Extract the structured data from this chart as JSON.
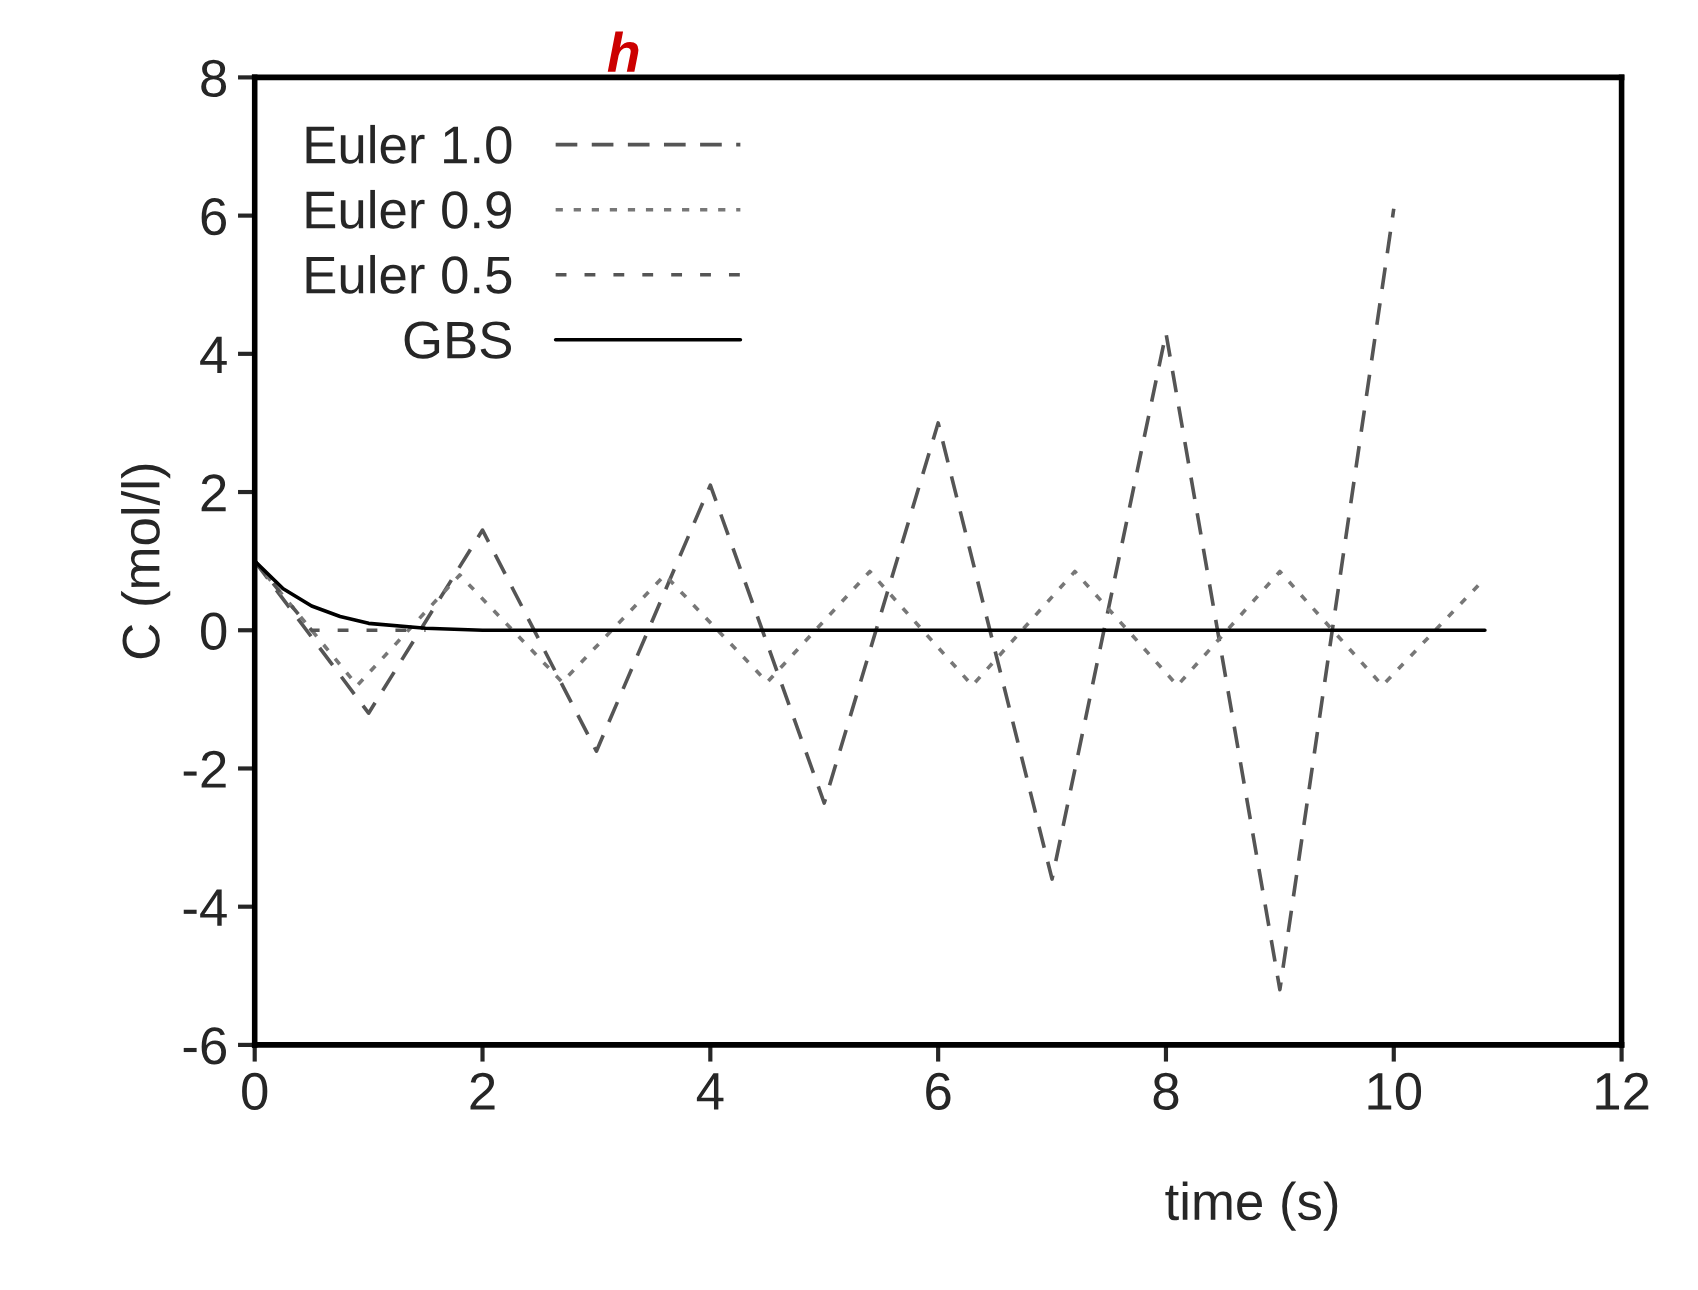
{
  "chart_data": {
    "type": "line",
    "title": "h",
    "xlabel": "time (s)",
    "ylabel": "C (mol/l)",
    "xlim": [
      0,
      12
    ],
    "xticks": [
      0,
      2,
      4,
      6,
      8,
      10,
      12
    ],
    "ylim": [
      -6,
      8
    ],
    "yticks": [
      -6,
      -4,
      -2,
      0,
      2,
      4,
      6,
      8
    ],
    "grid": false,
    "legend": "top left",
    "marker": "none",
    "series": [
      {
        "name": "Euler 1.0",
        "color": "#555555",
        "line_style": "dashed",
        "x": [
          0,
          1,
          2,
          3,
          4,
          5,
          6,
          7,
          8,
          9,
          10
        ],
        "values": [
          1,
          -1.2,
          1.45,
          -1.75,
          2.1,
          -2.5,
          3.0,
          -3.6,
          4.3,
          -5.2,
          6.1
        ]
      },
      {
        "name": "Euler 0.9",
        "color": "#777777",
        "line_style": "dotted",
        "x": [
          0,
          0.9,
          1.8,
          2.7,
          3.6,
          4.5,
          5.4,
          6.3,
          7.2,
          8.1,
          9.0,
          9.9,
          10.8
        ],
        "values": [
          1,
          -0.8,
          0.8,
          -0.75,
          0.8,
          -0.75,
          0.85,
          -0.8,
          0.85,
          -0.8,
          0.85,
          -0.8,
          0.75
        ]
      },
      {
        "name": "Euler 0.5",
        "color": "#555555",
        "line_style": "dashed",
        "x": [
          0,
          0.5,
          1.0,
          1.5
        ],
        "values": [
          1,
          0,
          0,
          0
        ]
      },
      {
        "name": "GBS",
        "color": "#000000",
        "line_style": "solid",
        "x": [
          0,
          0.25,
          0.5,
          0.75,
          1,
          1.5,
          2,
          10.8
        ],
        "values": [
          1,
          0.6,
          0.35,
          0.2,
          0.1,
          0.03,
          0,
          0
        ]
      }
    ]
  }
}
